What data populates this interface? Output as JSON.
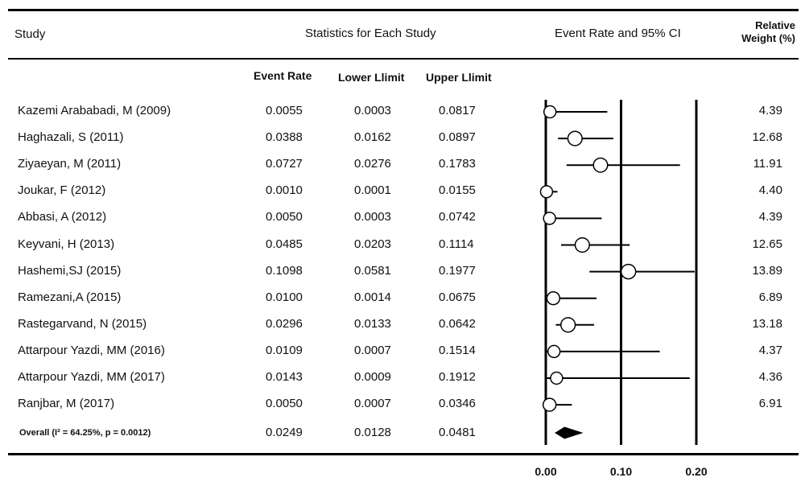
{
  "header": {
    "study": "Study",
    "stats": "Statistics for Each Study",
    "ci": "Event Rate and 95% CI",
    "weight_line1": "Relative",
    "weight_line2": "Weight (%)"
  },
  "subheader": {
    "event_rate": "Event Rate",
    "lower": "Lower Llimit",
    "upper": "Upper Llimit"
  },
  "overall_label": "Overall (I² = 64.25%, p = 0.0012)",
  "chart_data": {
    "type": "forest",
    "xlim": [
      0.0,
      0.2
    ],
    "x_ticks": [
      "0.00",
      "0.10",
      "0.20"
    ],
    "reference_lines": [
      0.0,
      0.1,
      0.2
    ],
    "studies": [
      {
        "name": "Kazemi Arababadi, M  (2009)",
        "event_rate": 0.0055,
        "lower": 0.0003,
        "upper": 0.0817,
        "weight": 4.39,
        "er": "0.0055",
        "lo": "0.0003",
        "up": "0.0817",
        "w": "4.39"
      },
      {
        "name": "Haghazali, S  (2011)",
        "event_rate": 0.0388,
        "lower": 0.0162,
        "upper": 0.0897,
        "weight": 12.68,
        "er": "0.0388",
        "lo": "0.0162",
        "up": "0.0897",
        "w": "12.68"
      },
      {
        "name": "Ziyaeyan, M  (2011)",
        "event_rate": 0.0727,
        "lower": 0.0276,
        "upper": 0.1783,
        "weight": 11.91,
        "er": "0.0727",
        "lo": "0.0276",
        "up": "0.1783",
        "w": "11.91"
      },
      {
        "name": "Joukar, F  (2012)",
        "event_rate": 0.001,
        "lower": 0.0001,
        "upper": 0.0155,
        "weight": 4.4,
        "er": "0.0010",
        "lo": "0.0001",
        "up": "0.0155",
        "w": "4.40"
      },
      {
        "name": "Abbasi, A  (2012)",
        "event_rate": 0.005,
        "lower": 0.0003,
        "upper": 0.0742,
        "weight": 4.39,
        "er": "0.0050",
        "lo": "0.0003",
        "up": "0.0742",
        "w": "4.39"
      },
      {
        "name": "Keyvani, H  (2013)",
        "event_rate": 0.0485,
        "lower": 0.0203,
        "upper": 0.1114,
        "weight": 12.65,
        "er": "0.0485",
        "lo": "0.0203",
        "up": "0.1114",
        "w": "12.65"
      },
      {
        "name": "Hashemi,SJ (2015)",
        "event_rate": 0.1098,
        "lower": 0.0581,
        "upper": 0.1977,
        "weight": 13.89,
        "er": "0.1098",
        "lo": "0.0581",
        "up": "0.1977",
        "w": "13.89"
      },
      {
        "name": "Ramezani,A  (2015)",
        "event_rate": 0.01,
        "lower": 0.0014,
        "upper": 0.0675,
        "weight": 6.89,
        "er": "0.0100",
        "lo": "0.0014",
        "up": "0.0675",
        "w": "6.89"
      },
      {
        "name": "Rastegarvand, N  (2015)",
        "event_rate": 0.0296,
        "lower": 0.0133,
        "upper": 0.0642,
        "weight": 13.18,
        "er": "0.0296",
        "lo": "0.0133",
        "up": "0.0642",
        "w": "13.18"
      },
      {
        "name": "Attarpour Yazdi, MM  (2016)",
        "event_rate": 0.0109,
        "lower": 0.0007,
        "upper": 0.1514,
        "weight": 4.37,
        "er": "0.0109",
        "lo": "0.0007",
        "up": "0.1514",
        "w": "4.37"
      },
      {
        "name": "Attarpour Yazdi, MM  (2017)",
        "event_rate": 0.0143,
        "lower": 0.0009,
        "upper": 0.1912,
        "weight": 4.36,
        "er": "0.0143",
        "lo": "0.0009",
        "up": "0.1912",
        "w": "4.36"
      },
      {
        "name": "Ranjbar, M  (2017)",
        "event_rate": 0.005,
        "lower": 0.0007,
        "upper": 0.0346,
        "weight": 6.91,
        "er": "0.0050",
        "lo": "0.0007",
        "up": "0.0346",
        "w": "6.91"
      }
    ],
    "overall": {
      "event_rate": 0.0249,
      "lower": 0.0128,
      "upper": 0.0481,
      "er": "0.0249",
      "lo": "0.0128",
      "up": "0.0481"
    }
  }
}
